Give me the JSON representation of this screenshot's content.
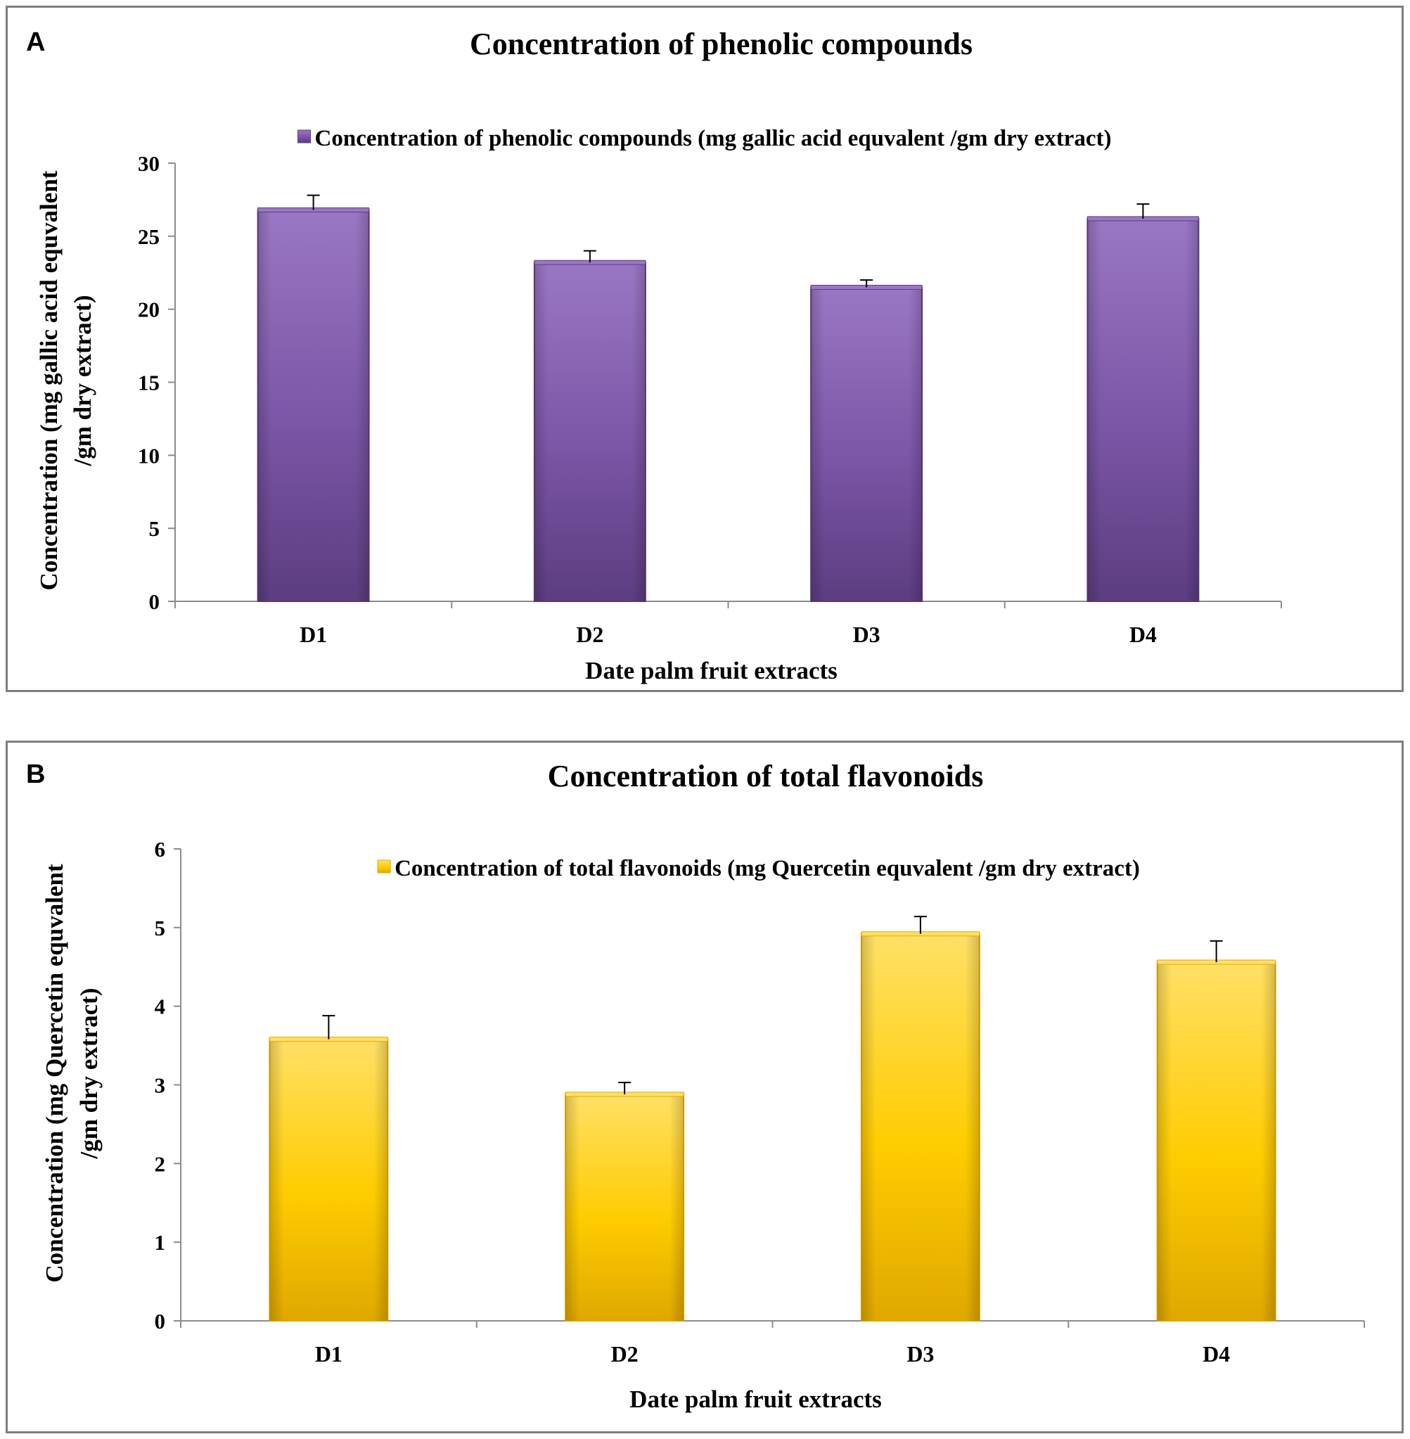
{
  "chart_data": [
    {
      "panel": "A",
      "type": "bar",
      "title": "Concentration of phenolic compounds",
      "legend": "Concentration of phenolic compounds (mg gallic acid equvalent /gm dry extract)",
      "legend_position": "top-center",
      "categories": [
        "D1",
        "D2",
        "D3",
        "D4"
      ],
      "values": [
        26.8,
        23.2,
        21.5,
        26.2
      ],
      "errors": [
        1.0,
        0.8,
        0.5,
        1.0
      ],
      "xlabel": "Date palm fruit extracts",
      "ylabel_lines": [
        "Concentration (mg gallic acid equvalent",
        "/gm dry extract)"
      ],
      "ylim": [
        0,
        30
      ],
      "yticks": [
        "0",
        "5",
        "10",
        "15",
        "20",
        "25",
        "30"
      ],
      "ytick_values": [
        0,
        5,
        10,
        15,
        20,
        25,
        30
      ],
      "color": "#7b55a6",
      "color_dark": "#5c3d80",
      "color_light": "#9a77c4",
      "grid": false
    },
    {
      "panel": "B",
      "type": "bar",
      "title": "Concentration of total flavonoids",
      "legend": "Concentration of total flavonoids (mg Quercetin equvalent /gm dry extract)",
      "legend_position": "top-center",
      "categories": [
        "D1",
        "D2",
        "D3",
        "D4"
      ],
      "values": [
        3.58,
        2.88,
        4.92,
        4.56
      ],
      "errors": [
        0.3,
        0.15,
        0.22,
        0.27
      ],
      "xlabel": "Date palm fruit extracts",
      "ylabel_lines": [
        "Concentration (mg Quercetin equvalent",
        "/gm dry extract)"
      ],
      "ylim": [
        0,
        6
      ],
      "yticks": [
        "0",
        "1",
        "2",
        "3",
        "4",
        "5",
        "6"
      ],
      "ytick_values": [
        0,
        1,
        2,
        3,
        4,
        5,
        6
      ],
      "color": "#ffcc00",
      "color_dark": "#e0a800",
      "color_light": "#ffe066",
      "grid": false
    }
  ]
}
